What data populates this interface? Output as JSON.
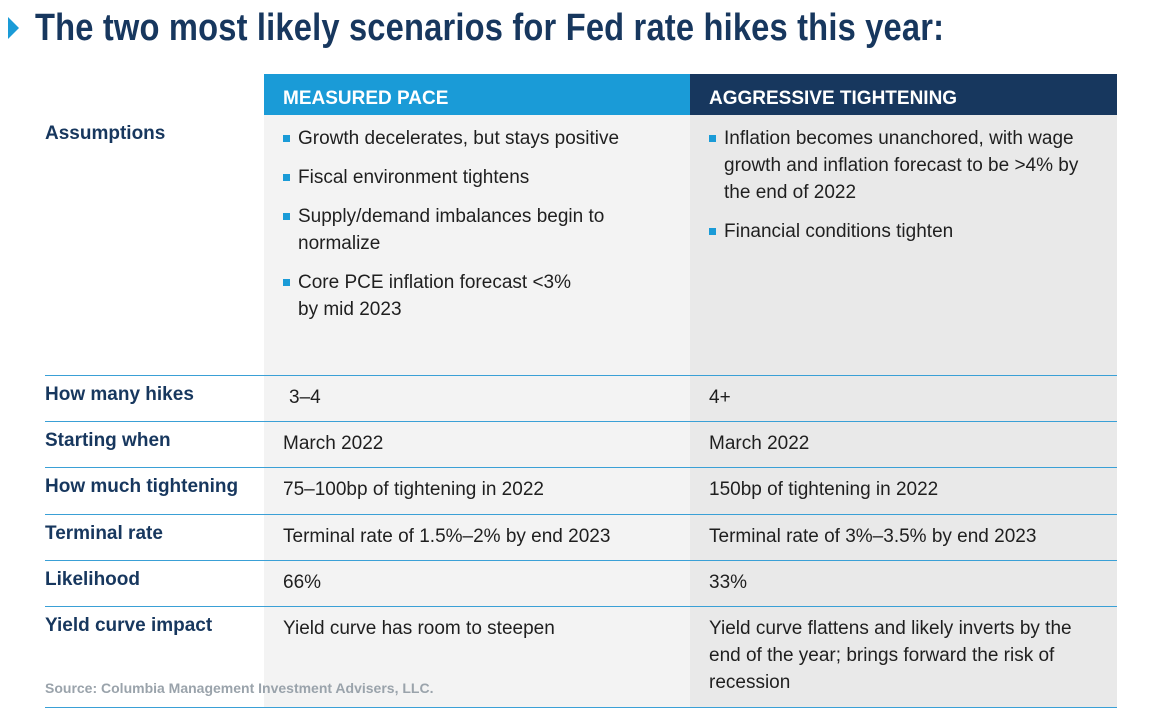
{
  "title": "The two most likely scenarios for Fed rate hikes this year:",
  "columns": [
    "MEASURED PACE",
    "AGGRESSIVE TIGHTENING"
  ],
  "rows": {
    "assumptions": {
      "label": "Assumptions",
      "measured": [
        "Growth decelerates, but stays positive",
        "Fiscal environment tightens",
        "Supply/demand imbalances begin to normalize",
        "Core PCE inflation forecast <3% by mid 2023"
      ],
      "aggressive": [
        "Inflation becomes unanchored, with wage growth and inflation forecast to be >4% by the end of 2022",
        "Financial conditions tighten"
      ]
    },
    "hikes": {
      "label": "How many hikes",
      "measured": "3–4",
      "aggressive": "4+"
    },
    "starting": {
      "label": "Starting when",
      "measured": "March 2022",
      "aggressive": "March 2022"
    },
    "tightening": {
      "label": "How much tightening",
      "measured": "75–100bp of tightening in 2022",
      "aggressive": "150bp of tightening in 2022"
    },
    "terminal": {
      "label": "Terminal rate",
      "measured": "Terminal rate of 1.5%–2% by end 2023",
      "aggressive": "Terminal rate of 3%–3.5% by end 2023"
    },
    "likelihood": {
      "label": "Likelihood",
      "measured": "66%",
      "aggressive": "33%"
    },
    "yield": {
      "label": "Yield curve impact",
      "measured": "Yield curve has room to steepen",
      "aggressive": "Yield curve flattens and likely inverts by the end of the year; brings forward the risk of recession"
    }
  },
  "source": "Source: Columbia Management Investment Advisers, LLC.",
  "colors": {
    "light_blue": "#1a9bd7",
    "navy": "#17375e"
  }
}
